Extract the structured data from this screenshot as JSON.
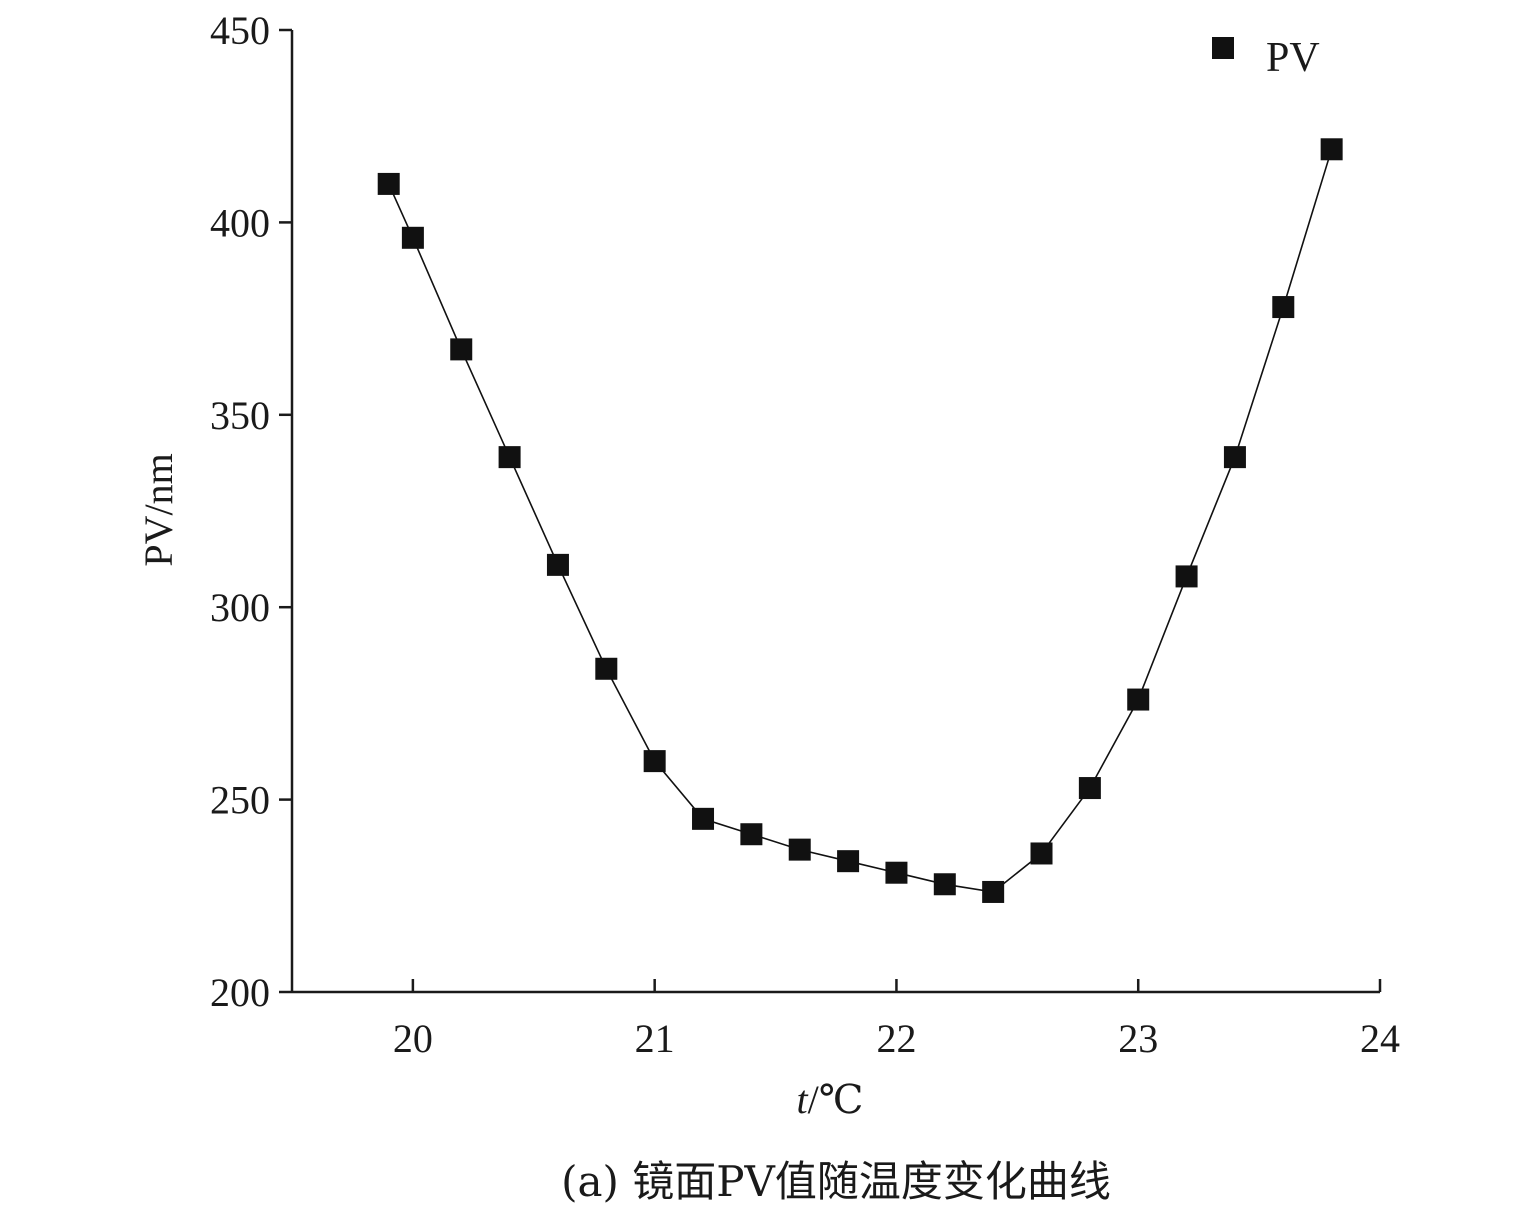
{
  "chart_data": {
    "type": "line",
    "caption": "(a) 镜面PV值随温度变化曲线",
    "xlabel_italic": "t",
    "xlabel_unit": "/℃",
    "ylabel": "PV/nm",
    "xlim": [
      19.5,
      24
    ],
    "ylim": [
      200,
      450
    ],
    "xticks": [
      20,
      21,
      22,
      23,
      24
    ],
    "yticks": [
      200,
      250,
      300,
      350,
      400,
      450
    ],
    "legend": {
      "position": "top-right",
      "entries": [
        "PV"
      ]
    },
    "grid": false,
    "series": [
      {
        "name": "PV",
        "marker": "square",
        "color": "#111111",
        "x": [
          19.9,
          20.0,
          20.2,
          20.4,
          20.6,
          20.8,
          21.0,
          21.2,
          21.4,
          21.6,
          21.8,
          22.0,
          22.2,
          22.4,
          22.6,
          22.8,
          23.0,
          23.2,
          23.4,
          23.6,
          23.8
        ],
        "y": [
          410,
          396,
          367,
          339,
          311,
          284,
          260,
          245,
          241,
          237,
          234,
          231,
          228,
          226,
          236,
          253,
          276,
          308,
          339,
          378,
          419
        ]
      }
    ]
  }
}
